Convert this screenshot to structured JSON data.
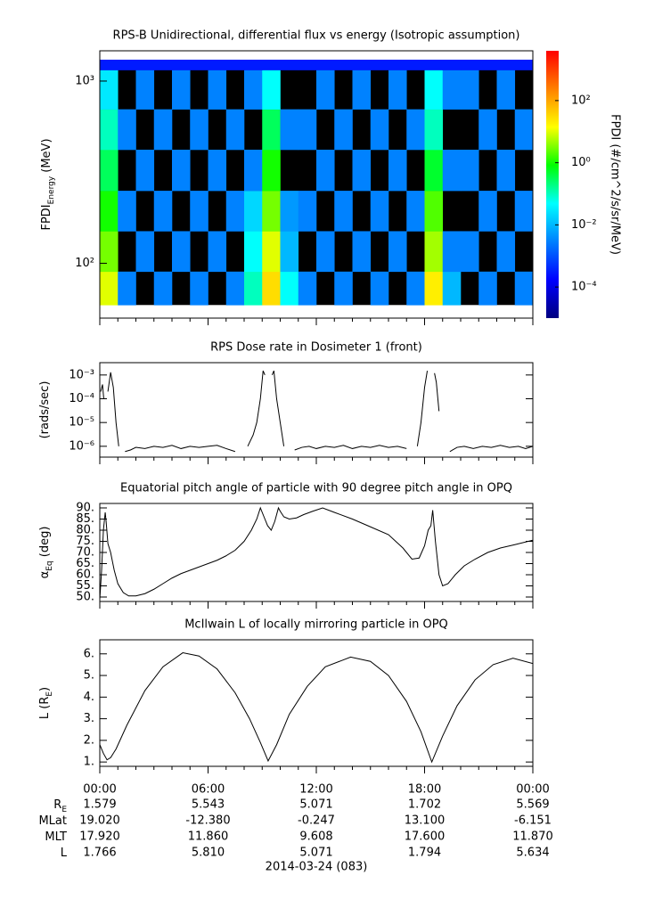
{
  "chart_data": [
    {
      "type": "heatmap",
      "title": "RPS-B  Unidirectional, differential flux vs energy (Isotropic assumption)",
      "ylabel": [
        "FPDI",
        "Energy",
        " (MeV)"
      ],
      "ylog": true,
      "xlim": [
        0,
        24
      ],
      "ylim": [
        50,
        1466
      ],
      "yticks": [
        {
          "value": 1000,
          "label": "10³"
        },
        {
          "value": 100,
          "label": "10²"
        }
      ],
      "x": [
        0,
        1,
        2,
        3,
        4,
        5,
        6,
        7,
        8,
        9,
        10,
        11,
        12,
        13,
        14,
        15,
        16,
        17,
        18,
        19,
        20,
        21,
        22,
        23,
        24
      ],
      "y": [
        59,
        90,
        150,
        250,
        420,
        700,
        1150,
        1310
      ],
      "z": [
        [
          10,
          0.003,
          null,
          0.003,
          null,
          0.003,
          null,
          0.003,
          0.1,
          30,
          0.05,
          0.003,
          null,
          0.003,
          null,
          0.003,
          null,
          0.003,
          20,
          0.01,
          null,
          0.003,
          null,
          0.003
        ],
        [
          3,
          null,
          0.003,
          null,
          0.003,
          null,
          0.003,
          null,
          0.05,
          10,
          0.01,
          null,
          0.003,
          null,
          0.003,
          null,
          0.003,
          null,
          5,
          0.003,
          0.003,
          null,
          0.003,
          null
        ],
        [
          1,
          0.003,
          null,
          0.003,
          null,
          0.003,
          null,
          0.003,
          0.02,
          3,
          0.005,
          0.003,
          null,
          0.003,
          null,
          0.003,
          null,
          0.003,
          2,
          null,
          null,
          0.003,
          null,
          0.003
        ],
        [
          0.3,
          null,
          0.003,
          null,
          0.003,
          null,
          0.003,
          null,
          0.003,
          1,
          null,
          null,
          0.003,
          null,
          0.003,
          null,
          0.003,
          null,
          0.5,
          0.003,
          0.003,
          null,
          0.003,
          null
        ],
        [
          0.1,
          0.003,
          null,
          0.003,
          null,
          0.003,
          null,
          0.003,
          null,
          0.3,
          0.003,
          0.003,
          null,
          0.003,
          null,
          0.003,
          null,
          0.003,
          0.1,
          null,
          null,
          0.003,
          null,
          0.003
        ],
        [
          0.03,
          null,
          0.003,
          null,
          0.003,
          null,
          0.003,
          null,
          0.003,
          0.05,
          null,
          null,
          0.003,
          null,
          0.003,
          null,
          0.003,
          null,
          0.05,
          0.003,
          0.003,
          null,
          0.003,
          null
        ],
        [
          0.0003,
          0.0003,
          0.0003,
          0.0003,
          0.0003,
          0.0003,
          0.0003,
          0.0003,
          0.0003,
          0.0003,
          0.0003,
          0.0003,
          0.0003,
          0.0003,
          0.0003,
          0.0003,
          0.0003,
          0.0003,
          0.0003,
          0.0003,
          0.0003,
          0.0003,
          0.0003,
          0.0003
        ]
      ],
      "zlabel": "FPDI (#/cm^2/s/sr/MeV)",
      "zlim": [
        1e-05,
        4000
      ],
      "zticks": [
        {
          "value": 100,
          "label": "10²"
        },
        {
          "value": 1,
          "label": "10⁰"
        },
        {
          "value": 0.01,
          "label": "10⁻²"
        },
        {
          "value": 0.0001,
          "label": "10⁻⁴"
        }
      ],
      "colorscale": [
        "#00007f",
        "#0000ff",
        "#0080ff",
        "#00ffff",
        "#00ff00",
        "#ffff00",
        "#ff8000",
        "#ff0000"
      ]
    },
    {
      "type": "line",
      "title": "RPS  Dose rate in Dosimeter 1 (front)",
      "ylabel": [
        "(rads/sec)"
      ],
      "ylog": true,
      "xlim": [
        0,
        24
      ],
      "ylim": [
        3.5e-07,
        0.0033
      ],
      "color": "#000000",
      "yticks": [
        {
          "value": 0.001,
          "label": "10⁻³"
        },
        {
          "value": 0.0001,
          "label": "10⁻⁴"
        },
        {
          "value": 1e-05,
          "label": "10⁻⁵"
        },
        {
          "value": 1e-06,
          "label": "10⁻⁶"
        }
      ],
      "x": [
        0.05,
        0.15,
        0.22,
        0.28,
        0.45,
        0.6,
        0.75,
        0.9,
        1.05,
        1.2,
        1.4,
        1.7,
        2,
        2.5,
        3,
        3.5,
        4,
        4.5,
        5,
        5.5,
        6,
        6.5,
        7,
        7.5,
        7.8,
        8.2,
        8.5,
        8.7,
        8.9,
        9.05,
        9.15,
        9.25,
        9.55,
        9.65,
        9.8,
        10,
        10.2,
        10.4,
        10.8,
        11.2,
        11.6,
        12,
        12.5,
        13,
        13.5,
        14,
        14.5,
        15,
        15.5,
        16,
        16.5,
        17,
        17.3,
        17.6,
        17.8,
        18.0,
        18.15,
        18.25,
        18.55,
        18.65,
        18.8,
        18.95,
        19.4,
        19.8,
        20.2,
        20.7,
        21.2,
        21.7,
        22.2,
        22.7,
        23.2,
        23.6,
        24
      ],
      "values": [
        0.0002,
        0.0004,
        0.0001,
        null,
        0.0002,
        0.0013,
        0.0003,
        1e-05,
        1e-06,
        null,
        6e-07,
        7e-07,
        9e-07,
        8e-07,
        1e-06,
        9e-07,
        1.1e-06,
        8e-07,
        1e-06,
        9e-07,
        1e-06,
        1.1e-06,
        8e-07,
        6e-07,
        null,
        1e-06,
        3e-06,
        1e-05,
        0.0001,
        0.0015,
        0.001,
        null,
        0.001,
        0.0015,
        0.0001,
        1e-05,
        1e-06,
        null,
        7e-07,
        9e-07,
        1e-06,
        8e-07,
        1e-06,
        9e-07,
        1.1e-06,
        8e-07,
        1e-06,
        9e-07,
        1.1e-06,
        9e-07,
        1e-06,
        8e-07,
        null,
        1e-06,
        1e-05,
        0.0003,
        0.0015,
        null,
        0.0012,
        0.0005,
        3e-05,
        null,
        6e-07,
        9e-07,
        1e-06,
        8e-07,
        1e-06,
        9e-07,
        1.1e-06,
        9e-07,
        1e-06,
        8e-07,
        1e-06
      ]
    },
    {
      "type": "line",
      "title": "Equatorial pitch angle of particle with 90 degree pitch angle in OPQ",
      "ylabel": [
        "α",
        "Eq",
        " (deg)"
      ],
      "xlim": [
        0,
        24
      ],
      "ylim": [
        48,
        92
      ],
      "color": "#000000",
      "yticks": [
        {
          "value": 90,
          "label": "90."
        },
        {
          "value": 85,
          "label": "85."
        },
        {
          "value": 80,
          "label": "80."
        },
        {
          "value": 75,
          "label": "75."
        },
        {
          "value": 70,
          "label": "70."
        },
        {
          "value": 65,
          "label": "65."
        },
        {
          "value": 60,
          "label": "60."
        },
        {
          "value": 55,
          "label": "55."
        },
        {
          "value": 50,
          "label": "50."
        }
      ],
      "x": [
        0,
        0.1,
        0.2,
        0.3,
        0.35,
        0.45,
        0.6,
        0.8,
        1.0,
        1.3,
        1.6,
        2.0,
        2.5,
        3.0,
        3.5,
        4.0,
        4.5,
        5.0,
        5.5,
        6.0,
        6.5,
        7.0,
        7.5,
        8.0,
        8.4,
        8.7,
        8.9,
        9.1,
        9.3,
        9.5,
        9.7,
        9.9,
        10.0,
        10.2,
        10.5,
        10.9,
        11.3,
        11.8,
        12.35,
        13.0,
        14,
        15,
        16,
        16.8,
        17.3,
        17.7,
        18.0,
        18.2,
        18.35,
        18.45,
        18.6,
        18.8,
        19.0,
        19.3,
        19.7,
        20.2,
        20.8,
        21.5,
        22.2,
        23.0,
        24
      ],
      "values": [
        49,
        62,
        80,
        88,
        84,
        74,
        70,
        62,
        56,
        52,
        50.5,
        50.5,
        51.5,
        53.5,
        56,
        58.5,
        60.5,
        62,
        63.5,
        65,
        66.5,
        68.5,
        71,
        75,
        80,
        85,
        90,
        86,
        82,
        80,
        84,
        90,
        88.5,
        86,
        85,
        85.5,
        87,
        88.5,
        90,
        88,
        85,
        81.5,
        78,
        72,
        67,
        67.5,
        73,
        80,
        82,
        89,
        75,
        60,
        55,
        56,
        60,
        64,
        67,
        70,
        72,
        73.5,
        75.5
      ]
    },
    {
      "type": "line",
      "title": "McIlwain L of locally mirroring particle in OPQ",
      "ylabel": [
        "L (R",
        "E",
        ")"
      ],
      "xlim": [
        0,
        24
      ],
      "ylim": [
        0.8,
        6.65
      ],
      "color": "#000000",
      "yticks": [
        {
          "value": 6,
          "label": "6."
        },
        {
          "value": 5,
          "label": "5."
        },
        {
          "value": 4,
          "label": "4."
        },
        {
          "value": 3,
          "label": "3."
        },
        {
          "value": 2,
          "label": "2."
        },
        {
          "value": 1,
          "label": "1."
        }
      ],
      "x": [
        0,
        0.2,
        0.4,
        0.6,
        0.9,
        1.5,
        2.5,
        3.5,
        4.6,
        5.5,
        6.5,
        7.5,
        8.3,
        8.9,
        9.33,
        9.8,
        10.5,
        11.5,
        12.5,
        13.9,
        15,
        16,
        17,
        17.8,
        18.4,
        19,
        19.8,
        20.8,
        21.8,
        22.9,
        24
      ],
      "values": [
        1.8,
        1.4,
        1.1,
        1.2,
        1.6,
        2.7,
        4.3,
        5.4,
        6.05,
        5.9,
        5.3,
        4.2,
        3.0,
        1.9,
        1.05,
        1.8,
        3.2,
        4.5,
        5.4,
        5.85,
        5.65,
        5.0,
        3.8,
        2.4,
        1.0,
        2.2,
        3.6,
        4.8,
        5.5,
        5.8,
        5.55
      ],
      "xticks": [
        {
          "value": 0,
          "label": "00:00"
        },
        {
          "value": 6,
          "label": "06:00"
        },
        {
          "value": 12,
          "label": "12:00"
        },
        {
          "value": 18,
          "label": "18:00"
        },
        {
          "value": 24,
          "label": "00:00"
        }
      ],
      "xminorticks": [
        1,
        2,
        3,
        4,
        5,
        7,
        8,
        9,
        10,
        11,
        13,
        14,
        15,
        16,
        17,
        19,
        20,
        21,
        22,
        23
      ]
    }
  ],
  "ephemeris": {
    "rows": [
      {
        "label": [
          "R",
          "E"
        ],
        "values": [
          "1.579",
          "5.543",
          "5.071",
          "1.702",
          "5.569"
        ]
      },
      {
        "label": [
          "MLat"
        ],
        "values": [
          "19.020",
          "-12.380",
          "-0.247",
          "13.100",
          "-6.151"
        ]
      },
      {
        "label": [
          "MLT"
        ],
        "values": [
          "17.920",
          "11.860",
          "9.608",
          "17.600",
          "11.870"
        ]
      },
      {
        "label": [
          "L"
        ],
        "values": [
          "1.766",
          "5.810",
          "5.071",
          "1.794",
          "5.634"
        ]
      }
    ],
    "date": "2014-03-24 (083)"
  }
}
